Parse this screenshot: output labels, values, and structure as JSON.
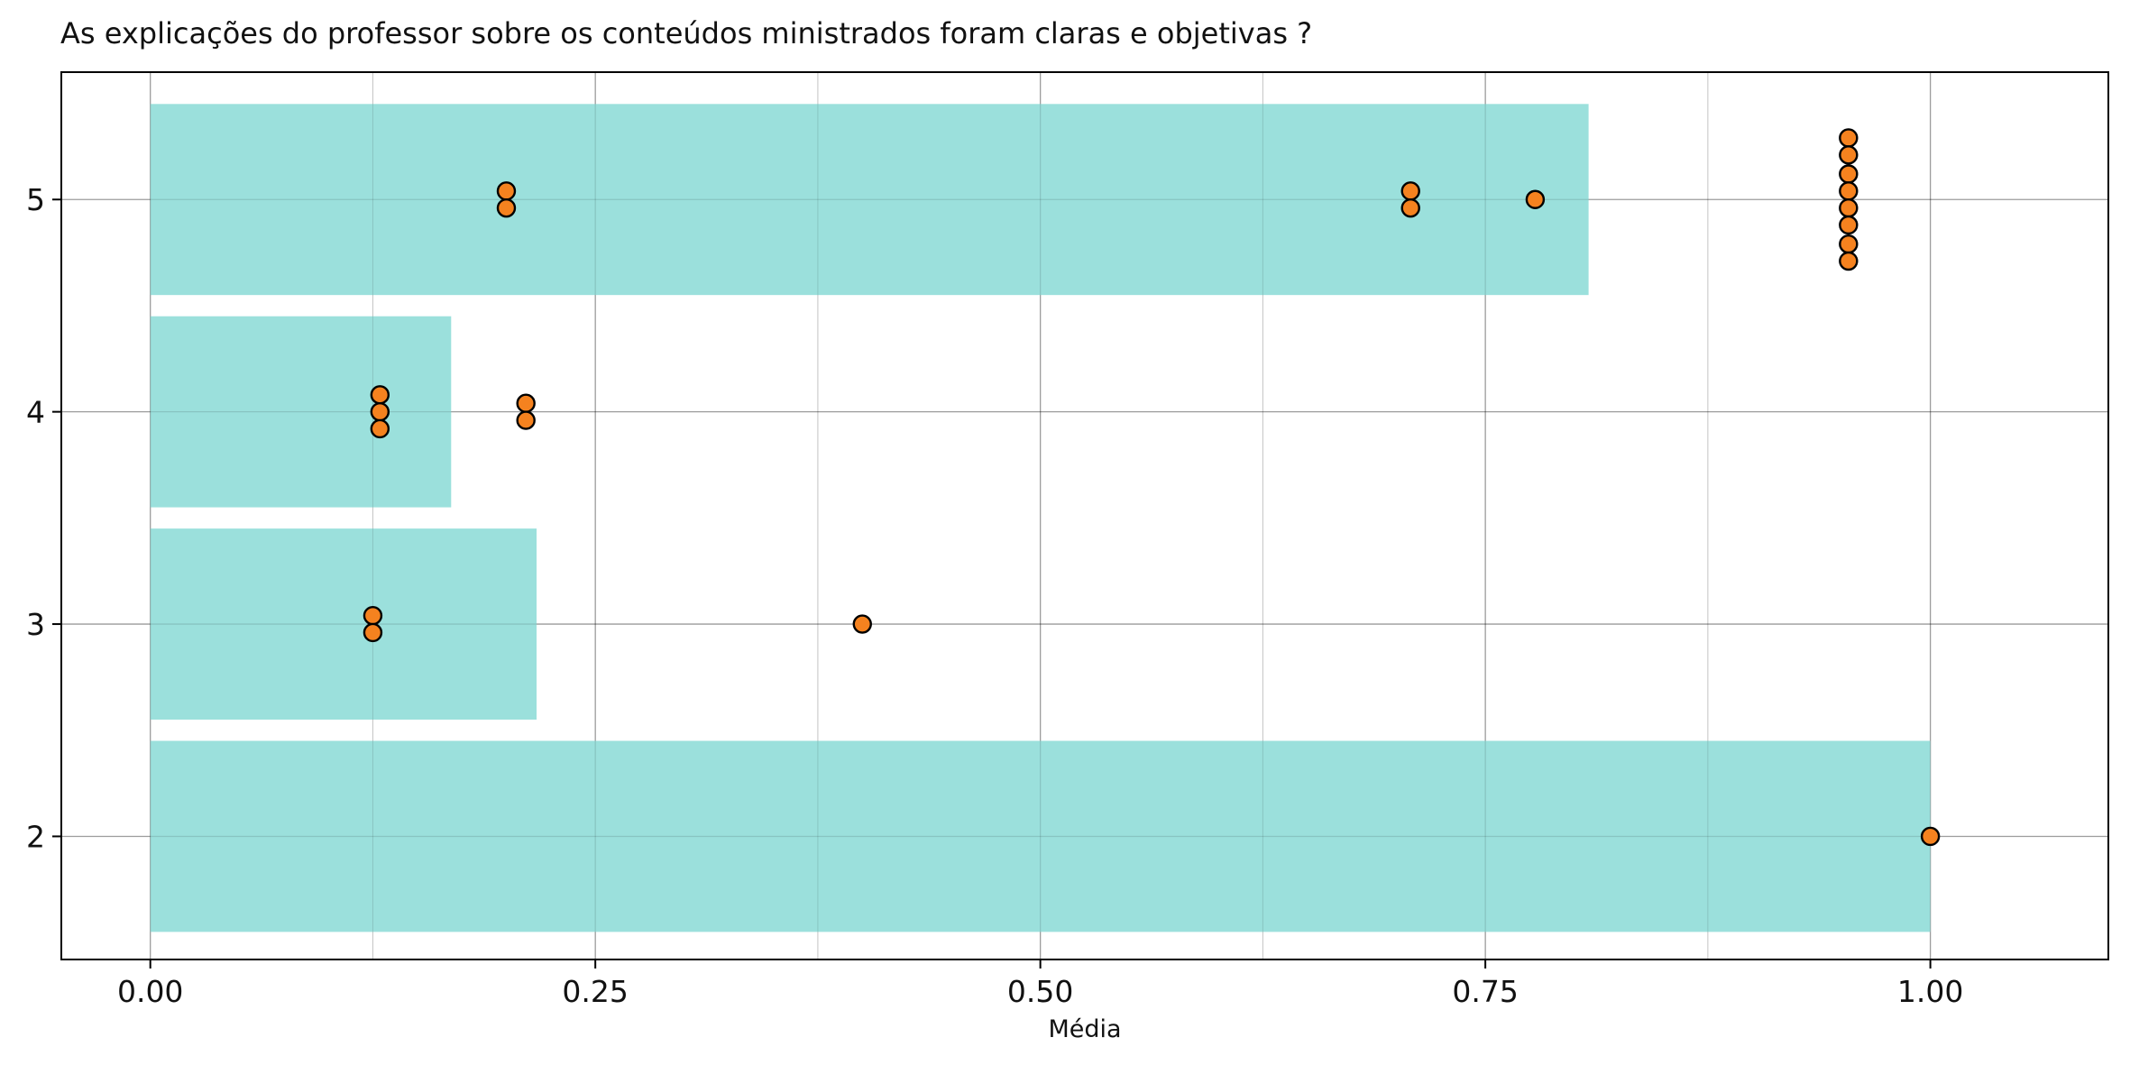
{
  "chart_data": {
    "type": "bar",
    "orientation": "horizontal",
    "title": "As explicações do professor sobre os conteúdos ministrados foram claras e objetivas ?",
    "xlabel": "Média",
    "ylabel": "",
    "xlim": [
      -0.05,
      1.1
    ],
    "ylim": [
      1.42,
      5.6
    ],
    "x_ticks": [
      0.0,
      0.25,
      0.5,
      0.75,
      1.0
    ],
    "x_tick_labels": [
      "0.00",
      "0.25",
      "0.50",
      "0.75",
      "1.00"
    ],
    "x_minor_ticks": [
      0.125,
      0.375,
      0.625,
      0.875
    ],
    "y_ticks": [
      2,
      3,
      4,
      5
    ],
    "y_tick_labels": [
      "2",
      "3",
      "4",
      "5"
    ],
    "grid": true,
    "bar_color": "#9be0dc",
    "point_color": "#f5821f",
    "point_edge_color": "#000000",
    "bars": [
      {
        "category": 2,
        "value": 1.0
      },
      {
        "category": 3,
        "value": 0.217
      },
      {
        "category": 4,
        "value": 0.169
      },
      {
        "category": 5,
        "value": 0.808
      }
    ],
    "points": [
      {
        "category": 5,
        "x": 0.2,
        "y": 5.04
      },
      {
        "category": 5,
        "x": 0.2,
        "y": 4.96
      },
      {
        "category": 5,
        "x": 0.708,
        "y": 5.04
      },
      {
        "category": 5,
        "x": 0.708,
        "y": 4.96
      },
      {
        "category": 5,
        "x": 0.778,
        "y": 5.0
      },
      {
        "category": 5,
        "x": 0.954,
        "y": 5.29
      },
      {
        "category": 5,
        "x": 0.954,
        "y": 5.21
      },
      {
        "category": 5,
        "x": 0.954,
        "y": 5.12
      },
      {
        "category": 5,
        "x": 0.954,
        "y": 5.04
      },
      {
        "category": 5,
        "x": 0.954,
        "y": 4.96
      },
      {
        "category": 5,
        "x": 0.954,
        "y": 4.88
      },
      {
        "category": 5,
        "x": 0.954,
        "y": 4.79
      },
      {
        "category": 5,
        "x": 0.954,
        "y": 4.71
      },
      {
        "category": 4,
        "x": 0.129,
        "y": 4.08
      },
      {
        "category": 4,
        "x": 0.129,
        "y": 4.0
      },
      {
        "category": 4,
        "x": 0.129,
        "y": 3.92
      },
      {
        "category": 4,
        "x": 0.211,
        "y": 4.04
      },
      {
        "category": 4,
        "x": 0.211,
        "y": 3.96
      },
      {
        "category": 3,
        "x": 0.125,
        "y": 3.04
      },
      {
        "category": 3,
        "x": 0.125,
        "y": 2.96
      },
      {
        "category": 3,
        "x": 0.4,
        "y": 3.0
      },
      {
        "category": 2,
        "x": 1.0,
        "y": 2.0
      }
    ]
  }
}
